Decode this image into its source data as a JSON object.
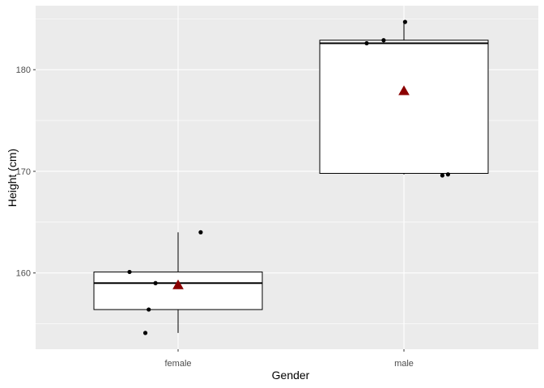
{
  "chart_data": {
    "type": "boxplot",
    "title": "",
    "xlabel": "Gender",
    "ylabel": "Height (cm)",
    "categories": [
      "female",
      "male"
    ],
    "ylim": [
      152.5,
      186.3
    ],
    "yticks": [
      160,
      170,
      180
    ],
    "grid": true,
    "legend": "none",
    "boxes": [
      {
        "category": "female",
        "whisker_low": 154.1,
        "q1": 156.4,
        "median": 159.0,
        "q3": 160.1,
        "whisker_high": 164.0,
        "mean": 158.8
      },
      {
        "category": "male",
        "whisker_low": 169.7,
        "q1": 169.8,
        "median": 182.6,
        "q3": 182.9,
        "whisker_high": 184.7,
        "mean": 177.9
      }
    ],
    "points": [
      {
        "category": "female",
        "jitter": -0.43,
        "y": 160.1
      },
      {
        "category": "female",
        "jitter": -0.29,
        "y": 154.1
      },
      {
        "category": "female",
        "jitter": -0.26,
        "y": 156.4
      },
      {
        "category": "female",
        "jitter": -0.2,
        "y": 159.0
      },
      {
        "category": "female",
        "jitter": 0.2,
        "y": 164.0
      },
      {
        "category": "male",
        "jitter": -0.33,
        "y": 182.6
      },
      {
        "category": "male",
        "jitter": -0.18,
        "y": 182.9
      },
      {
        "category": "male",
        "jitter": 0.01,
        "y": 184.7
      },
      {
        "category": "male",
        "jitter": 0.34,
        "y": 169.6
      },
      {
        "category": "male",
        "jitter": 0.39,
        "y": 169.7
      }
    ]
  },
  "colors": {
    "panel": "#ebebeb",
    "grid": "#ffffff",
    "box_fill": "#ffffff",
    "box_line": "#000000",
    "point": "#000000",
    "mean_marker": "#8b0000",
    "tick_text": "#4d4d4d"
  }
}
